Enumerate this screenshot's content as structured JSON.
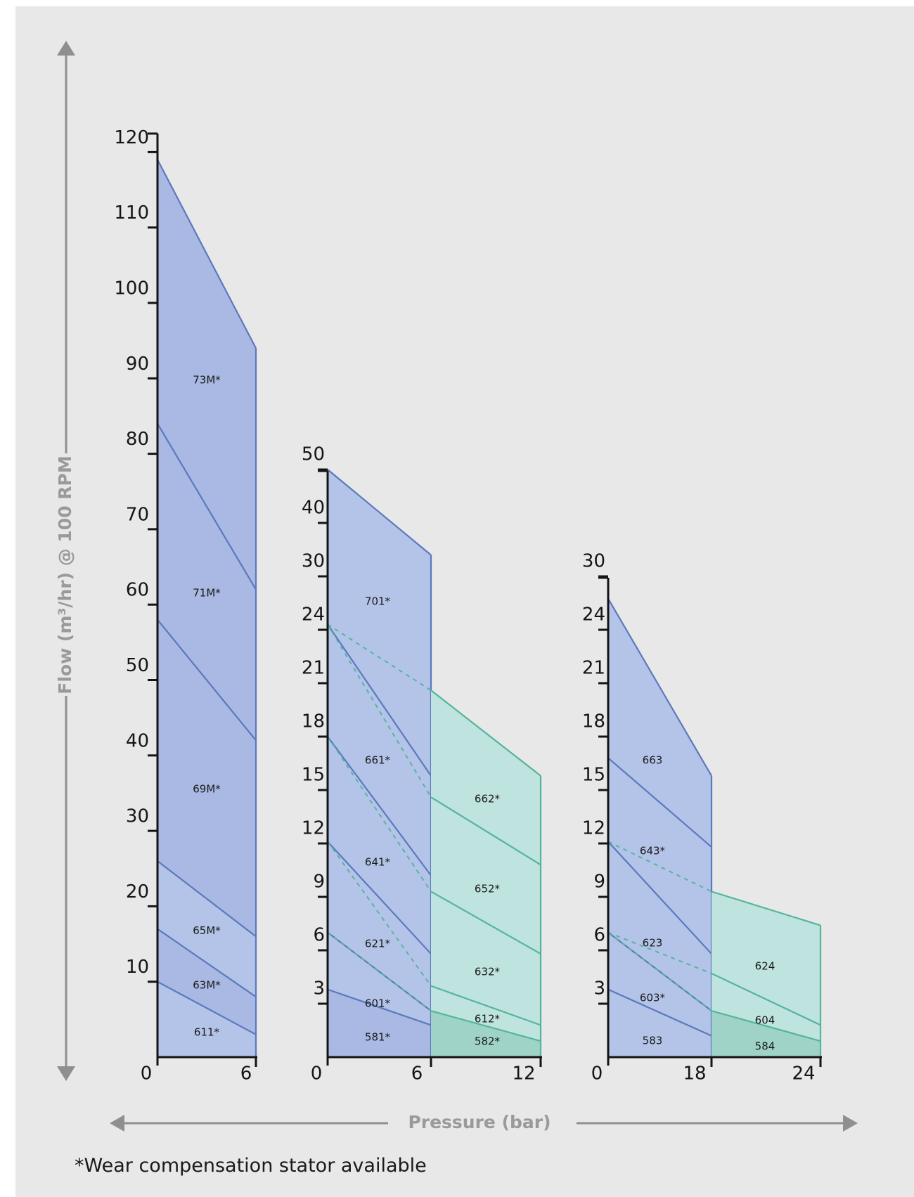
{
  "chart_data": {
    "type": "area",
    "y_axis_title": "Flow (m³/hr) @ 100 RPM",
    "x_axis_title": "Pressure (bar)",
    "footnote": "*Wear compensation stator available",
    "colors": {
      "blue_fill": "#b4c4e8",
      "blue_fill_dark": "#a9b9e3",
      "blue_line": "#5b79bd",
      "green_fill": "#bfe3de",
      "green_fill_dark": "#9fd3c8",
      "green_line": "#55b59c",
      "axis": "#141414",
      "arrow": "#8f8f8f"
    },
    "panels": [
      {
        "name": "panel-1",
        "x_ticks": [
          "0",
          "6"
        ],
        "y_ticks": [
          "10",
          "20",
          "30",
          "40",
          "50",
          "60",
          "70",
          "80",
          "90",
          "100",
          "110",
          "120"
        ],
        "regions": [
          {
            "label": "611*",
            "flow_at_0": 10,
            "flow_at_max": 3
          },
          {
            "label": "63M*",
            "flow_at_0": 17,
            "flow_at_max": 8
          },
          {
            "label": "65M*",
            "flow_at_0": 26,
            "flow_at_max": 16
          },
          {
            "label": "69M*",
            "flow_at_0": 58,
            "flow_at_max": 42
          },
          {
            "label": "71M*",
            "flow_at_0": 84,
            "flow_at_max": 62
          },
          {
            "label": "73M*",
            "flow_at_0": 119,
            "flow_at_max": 94
          }
        ]
      },
      {
        "name": "panel-2",
        "x_ticks": [
          "0",
          "6",
          "12"
        ],
        "y_ticks": [
          "3",
          "6",
          "9",
          "12",
          "15",
          "18",
          "21",
          "24",
          "30",
          "40",
          "50"
        ],
        "regions": [
          {
            "label": "581*",
            "flow_at_0": 3.8,
            "flow_at_6": 1.8
          },
          {
            "label": "601*",
            "flow_at_0": 7,
            "flow_at_6": 2.6
          },
          {
            "label": "621*",
            "flow_at_0": 12.1,
            "flow_at_6": 5.8
          },
          {
            "label": "641*",
            "flow_at_0": 18,
            "flow_at_6": 10.2
          },
          {
            "label": "661*",
            "flow_at_0": 24.6,
            "flow_at_6": 15.8
          },
          {
            "label": "701*",
            "flow_at_0": 50,
            "flow_at_6": 34
          }
        ],
        "extension_regions": [
          {
            "label": "582*",
            "flow_at_6": 2.6,
            "flow_at_12": 0.9
          },
          {
            "label": "612*",
            "flow_at_6": 4,
            "flow_at_12": 1.8
          },
          {
            "label": "632*",
            "flow_at_6": 9.3,
            "flow_at_12": 5.8
          },
          {
            "label": "652*",
            "flow_at_6": 14.6,
            "flow_at_12": 10.8
          },
          {
            "label": "662*",
            "flow_at_6": 20.6,
            "flow_at_12": 15.8
          }
        ]
      },
      {
        "name": "panel-3",
        "x_ticks": [
          "0",
          "18",
          "24"
        ],
        "y_ticks": [
          "3",
          "6",
          "9",
          "12",
          "15",
          "18",
          "21",
          "24",
          "30"
        ],
        "regions": [
          {
            "label": "583",
            "flow_at_0": 3.8,
            "flow_at_18": 1.2
          },
          {
            "label": "603*",
            "flow_at_0": 7,
            "flow_at_18": 2.6
          },
          {
            "label": "623",
            "flow_at_0": 12.1,
            "flow_at_18": 5.8
          },
          {
            "label": "643*",
            "flow_at_0": 16.8,
            "flow_at_18": 11.8
          },
          {
            "label": "663",
            "flow_at_0": 27.5,
            "flow_at_18": 15.8
          }
        ],
        "extension_regions": [
          {
            "label": "584",
            "flow_at_18": 2.6,
            "flow_at_24": 0.9
          },
          {
            "label": "604",
            "flow_at_18": 4.7,
            "flow_at_24": 1.8
          },
          {
            "label": "624",
            "flow_at_18": 9.3,
            "flow_at_24": 7.4
          }
        ]
      }
    ],
    "grid": false,
    "legend": "none"
  }
}
